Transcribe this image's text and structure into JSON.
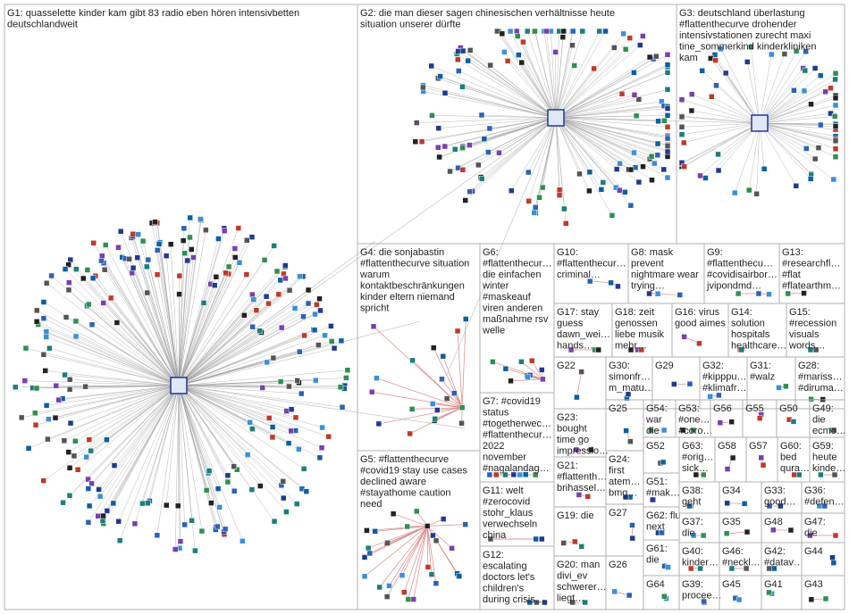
{
  "groups": [
    {
      "lines": [
        "G1: quasselette kinder kam gibt 83 radio eben hören intensivbetten",
        "deutschlandweit"
      ]
    },
    {
      "lines": [
        "G2: die man dieser sagen chinesischen verhältnisse heute",
        "situation unserer dürfte"
      ]
    },
    {
      "lines": [
        "G3: deutschland überlastung",
        "#flattenthecurve drohender",
        "intensivstationen zurecht maxi",
        "tine_sommerkind kinderkliniken",
        "kam"
      ]
    },
    {
      "lines": [
        "G4: die sonjabastin",
        "#flattenthecurve situation",
        "warum",
        "kontaktbeschränkungen",
        "kinder eltern niemand",
        "spricht"
      ]
    },
    {
      "lines": [
        "G5: #flattenthecurve",
        "#covid19 stay use cases",
        "declined aware",
        "#stayathome caution",
        "need"
      ]
    },
    {
      "lines": [
        "G6:",
        "#flattenthecur…",
        "die einfachen",
        "winter",
        "#maskeauf",
        "viren anderen",
        "maßnahme rsv",
        "welle"
      ]
    },
    {
      "lines": [
        "G7: #covid19",
        "status",
        "#togetherwec…",
        "#flattenthecur…",
        "2022",
        "november",
        "#nagalandag…"
      ]
    },
    {
      "lines": [
        "G11: welt",
        "#zerocovid",
        "stohr_klaus",
        "verwechseln",
        "china"
      ]
    },
    {
      "lines": [
        "G12:",
        "escalating",
        "doctors let's",
        "children's",
        "during crisis…"
      ]
    },
    {
      "lines": [
        "G10:",
        "#flattenthecur…",
        "criminal…"
      ]
    },
    {
      "lines": [
        "G8: mask",
        "prevent",
        "nightmare wear",
        "trying…"
      ]
    },
    {
      "lines": [
        "G9:",
        "#flattenthecu…",
        "#covidisairbor…",
        "jvipondmd…"
      ]
    },
    {
      "lines": [
        "G13:",
        "#researchfl…",
        "#flat",
        "#flatearthm…"
      ]
    },
    {
      "lines": [
        "G17: stay",
        "guess",
        "dawn_wei…",
        "hands…"
      ]
    },
    {
      "lines": [
        "G18: zeit",
        "genossen",
        "liebe musik",
        "mehr…"
      ]
    },
    {
      "lines": [
        "G16: virus",
        "good aimes"
      ]
    },
    {
      "lines": [
        "G14:",
        "solution",
        "hospitals",
        "healthcare…"
      ]
    },
    {
      "lines": [
        "G15:",
        "#recession",
        "visuals",
        "words…"
      ]
    },
    {
      "lines": [
        "G22"
      ]
    },
    {
      "lines": [
        "G30:",
        "simonfr…",
        "m_matu…"
      ]
    },
    {
      "lines": [
        "G29"
      ]
    },
    {
      "lines": [
        "G32:",
        "#kipppu…",
        "#klimafr…"
      ]
    },
    {
      "lines": [
        "G31:",
        "#walz"
      ]
    },
    {
      "lines": [
        "G28:",
        "#mariss…",
        "#diruma…"
      ]
    },
    {
      "lines": [
        "G23:",
        "bought",
        "time go",
        "impressio…"
      ]
    },
    {
      "lines": [
        "G21:",
        "#flattenth…",
        "brihassel…"
      ]
    },
    {
      "lines": [
        "G19: die"
      ]
    },
    {
      "lines": [
        "G20: man",
        "divi_ev",
        "schwerer…",
        "liegt…"
      ]
    },
    {
      "lines": [
        "G25"
      ]
    },
    {
      "lines": [
        "G24:",
        "first",
        "atem…",
        "bmg…"
      ]
    },
    {
      "lines": [
        "G27"
      ]
    },
    {
      "lines": [
        "G26"
      ]
    },
    {
      "lines": [
        "G54:",
        "war",
        "die"
      ]
    },
    {
      "lines": [
        "G53:",
        "#one…",
        "#coro…"
      ]
    },
    {
      "lines": [
        "G56"
      ]
    },
    {
      "lines": [
        "G55"
      ]
    },
    {
      "lines": [
        "G50"
      ]
    },
    {
      "lines": [
        "G49:",
        "die",
        "ecmo…"
      ]
    },
    {
      "lines": [
        "G52"
      ]
    },
    {
      "lines": [
        "G51:",
        "#mak…"
      ]
    },
    {
      "lines": [
        "G62: flu",
        "next"
      ]
    },
    {
      "lines": [
        "G61:",
        "die"
      ]
    },
    {
      "lines": [
        "G64"
      ]
    },
    {
      "lines": [
        "G63:",
        "#orig…",
        "sick…"
      ]
    },
    {
      "lines": [
        "G58"
      ]
    },
    {
      "lines": [
        "G57"
      ]
    },
    {
      "lines": [
        "G60:",
        "bed",
        "qura…"
      ]
    },
    {
      "lines": [
        "G59:",
        "heute",
        "kinde…"
      ]
    },
    {
      "lines": [
        "G38:",
        "geht"
      ]
    },
    {
      "lines": [
        "G34"
      ]
    },
    {
      "lines": [
        "G33:",
        "good…"
      ]
    },
    {
      "lines": [
        "G36:",
        "#defen…"
      ]
    },
    {
      "lines": [
        "G37:",
        "die"
      ]
    },
    {
      "lines": [
        "G35"
      ]
    },
    {
      "lines": [
        "G48"
      ]
    },
    {
      "lines": [
        "G47:",
        "die"
      ]
    },
    {
      "lines": [
        "G40:",
        "kinder…"
      ]
    },
    {
      "lines": [
        "G46:",
        "#neckl…"
      ]
    },
    {
      "lines": [
        "G42:",
        "#datav…"
      ]
    },
    {
      "lines": [
        "G44"
      ]
    },
    {
      "lines": [
        "G39:",
        "procee…"
      ]
    },
    {
      "lines": [
        "G45"
      ]
    },
    {
      "lines": [
        "G41"
      ]
    },
    {
      "lines": [
        "G43"
      ]
    }
  ]
}
